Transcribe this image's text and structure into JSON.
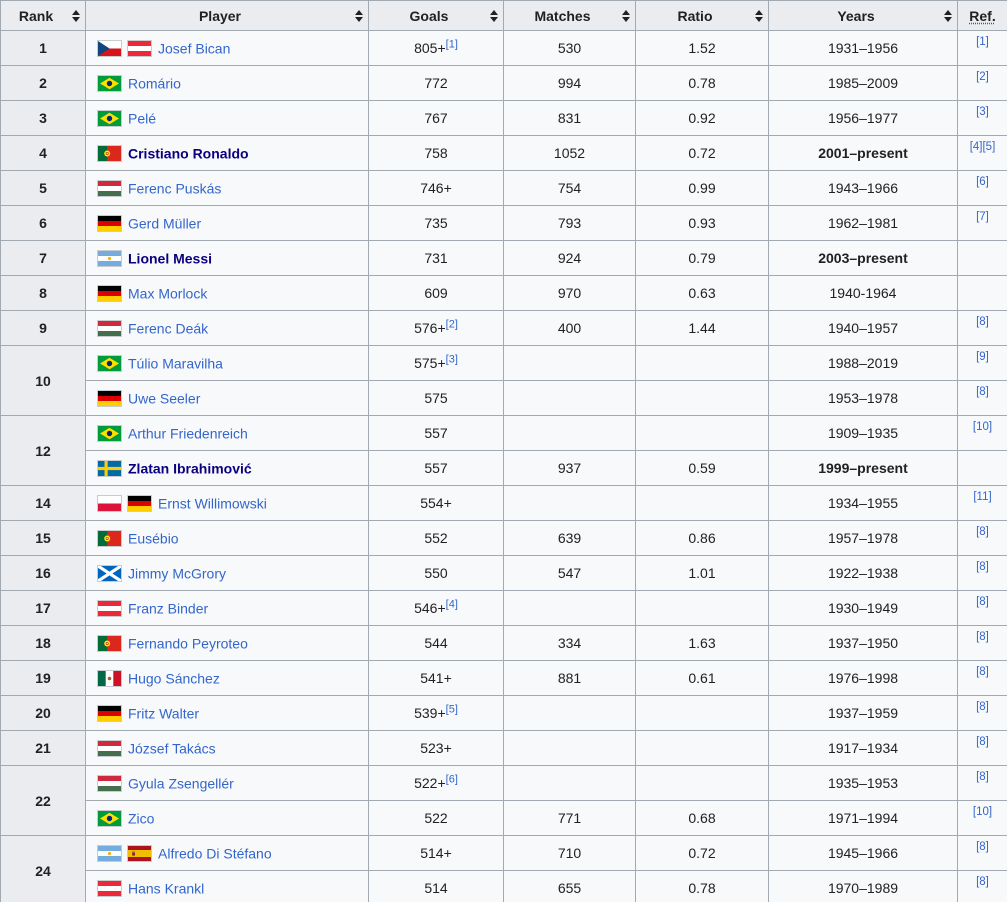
{
  "colors": {
    "header_bg": "#eaecf0",
    "cell_bg": "#f8f9fa",
    "border": "#a2a9b1",
    "link": "#3366cc",
    "active_player_link": "#0b0080",
    "text": "#202122"
  },
  "table": {
    "columns": [
      {
        "label": "Rank",
        "sortable": true,
        "dotted": false
      },
      {
        "label": "Player",
        "sortable": true,
        "dotted": false
      },
      {
        "label": "Goals",
        "sortable": true,
        "dotted": false
      },
      {
        "label": "Matches",
        "sortable": true,
        "dotted": false
      },
      {
        "label": "Ratio",
        "sortable": true,
        "dotted": false
      },
      {
        "label": "Years",
        "sortable": true,
        "dotted": false
      },
      {
        "label": "Ref.",
        "sortable": false,
        "dotted": true
      }
    ],
    "rows": [
      {
        "rank": "1",
        "rank_rowspan": 1,
        "flags": [
          {
            "name": "flag-czech-republic",
            "id": "cze"
          },
          {
            "name": "flag-austria",
            "id": "aut"
          }
        ],
        "player": "Josef Bican",
        "player_bold": false,
        "goals": "805+",
        "goals_ref": "[1]",
        "matches": "530",
        "ratio": "1.52",
        "years": "1931–1956",
        "years_bold": false,
        "ref": "[1]"
      },
      {
        "rank": "2",
        "rank_rowspan": 1,
        "flags": [
          {
            "name": "flag-brazil",
            "id": "bra"
          }
        ],
        "player": "Romário",
        "player_bold": false,
        "goals": "772",
        "goals_ref": "",
        "matches": "994",
        "ratio": "0.78",
        "years": "1985–2009",
        "years_bold": false,
        "ref": "[2]"
      },
      {
        "rank": "3",
        "rank_rowspan": 1,
        "flags": [
          {
            "name": "flag-brazil",
            "id": "bra"
          }
        ],
        "player": "Pelé",
        "player_bold": false,
        "goals": "767",
        "goals_ref": "",
        "matches": "831",
        "ratio": "0.92",
        "years": "1956–1977",
        "years_bold": false,
        "ref": "[3]"
      },
      {
        "rank": "4",
        "rank_rowspan": 1,
        "flags": [
          {
            "name": "flag-portugal",
            "id": "por"
          }
        ],
        "player": "Cristiano Ronaldo",
        "player_bold": true,
        "goals": "758",
        "goals_ref": "",
        "matches": "1052",
        "ratio": "0.72",
        "years": "2001–present",
        "years_bold": true,
        "ref": "[4][5]"
      },
      {
        "rank": "5",
        "rank_rowspan": 1,
        "flags": [
          {
            "name": "flag-hungary",
            "id": "hun"
          }
        ],
        "player": "Ferenc Puskás",
        "player_bold": false,
        "goals": "746+",
        "goals_ref": "",
        "matches": "754",
        "ratio": "0.99",
        "years": "1943–1966",
        "years_bold": false,
        "ref": "[6]"
      },
      {
        "rank": "6",
        "rank_rowspan": 1,
        "flags": [
          {
            "name": "flag-germany",
            "id": "ger"
          }
        ],
        "player": "Gerd Müller",
        "player_bold": false,
        "goals": "735",
        "goals_ref": "",
        "matches": "793",
        "ratio": "0.93",
        "years": "1962–1981",
        "years_bold": false,
        "ref": "[7]"
      },
      {
        "rank": "7",
        "rank_rowspan": 1,
        "flags": [
          {
            "name": "flag-argentina",
            "id": "arg"
          }
        ],
        "player": "Lionel Messi",
        "player_bold": true,
        "goals": "731",
        "goals_ref": "",
        "matches": "924",
        "ratio": "0.79",
        "years": "2003–present",
        "years_bold": true,
        "ref": ""
      },
      {
        "rank": "8",
        "rank_rowspan": 1,
        "flags": [
          {
            "name": "flag-germany",
            "id": "ger"
          }
        ],
        "player": "Max Morlock",
        "player_bold": false,
        "goals": "609",
        "goals_ref": "",
        "matches": "970",
        "ratio": "0.63",
        "years": "1940-1964",
        "years_bold": false,
        "ref": ""
      },
      {
        "rank": "9",
        "rank_rowspan": 1,
        "flags": [
          {
            "name": "flag-hungary",
            "id": "hun"
          }
        ],
        "player": "Ferenc Deák",
        "player_bold": false,
        "goals": "576+",
        "goals_ref": "[2]",
        "matches": "400",
        "ratio": "1.44",
        "years": "1940–1957",
        "years_bold": false,
        "ref": "[8]"
      },
      {
        "rank": "10",
        "rank_rowspan": 2,
        "flags": [
          {
            "name": "flag-brazil",
            "id": "bra"
          }
        ],
        "player": "Túlio Maravilha",
        "player_bold": false,
        "goals": "575+",
        "goals_ref": "[3]",
        "matches": "",
        "ratio": "",
        "years": "1988–2019",
        "years_bold": false,
        "ref": "[9]"
      },
      {
        "rank": null,
        "rank_rowspan": 1,
        "flags": [
          {
            "name": "flag-germany",
            "id": "ger"
          }
        ],
        "player": "Uwe Seeler",
        "player_bold": false,
        "goals": "575",
        "goals_ref": "",
        "matches": "",
        "ratio": "",
        "years": "1953–1978",
        "years_bold": false,
        "ref": "[8]"
      },
      {
        "rank": "12",
        "rank_rowspan": 2,
        "flags": [
          {
            "name": "flag-brazil",
            "id": "bra"
          }
        ],
        "player": "Arthur Friedenreich",
        "player_bold": false,
        "goals": "557",
        "goals_ref": "",
        "matches": "",
        "ratio": "",
        "years": "1909–1935",
        "years_bold": false,
        "ref": "[10]"
      },
      {
        "rank": null,
        "rank_rowspan": 1,
        "flags": [
          {
            "name": "flag-sweden",
            "id": "swe"
          }
        ],
        "player": "Zlatan Ibrahimović",
        "player_bold": true,
        "goals": "557",
        "goals_ref": "",
        "matches": "937",
        "ratio": "0.59",
        "years": "1999–present",
        "years_bold": true,
        "ref": ""
      },
      {
        "rank": "14",
        "rank_rowspan": 1,
        "flags": [
          {
            "name": "flag-poland",
            "id": "pol"
          },
          {
            "name": "flag-germany",
            "id": "ger"
          }
        ],
        "player": "Ernst Willimowski",
        "player_bold": false,
        "goals": "554+",
        "goals_ref": "",
        "matches": "",
        "ratio": "",
        "years": "1934–1955",
        "years_bold": false,
        "ref": "[11]"
      },
      {
        "rank": "15",
        "rank_rowspan": 1,
        "flags": [
          {
            "name": "flag-portugal",
            "id": "por"
          }
        ],
        "player": "Eusébio",
        "player_bold": false,
        "goals": "552",
        "goals_ref": "",
        "matches": "639",
        "ratio": "0.86",
        "years": "1957–1978",
        "years_bold": false,
        "ref": "[8]"
      },
      {
        "rank": "16",
        "rank_rowspan": 1,
        "flags": [
          {
            "name": "flag-scotland",
            "id": "sco"
          }
        ],
        "player": "Jimmy McGrory",
        "player_bold": false,
        "goals": "550",
        "goals_ref": "",
        "matches": "547",
        "ratio": "1.01",
        "years": "1922–1938",
        "years_bold": false,
        "ref": "[8]"
      },
      {
        "rank": "17",
        "rank_rowspan": 1,
        "flags": [
          {
            "name": "flag-austria",
            "id": "aut"
          }
        ],
        "player": "Franz Binder",
        "player_bold": false,
        "goals": "546+",
        "goals_ref": "[4]",
        "matches": "",
        "ratio": "",
        "years": "1930–1949",
        "years_bold": false,
        "ref": "[8]"
      },
      {
        "rank": "18",
        "rank_rowspan": 1,
        "flags": [
          {
            "name": "flag-portugal",
            "id": "por"
          }
        ],
        "player": "Fernando Peyroteo",
        "player_bold": false,
        "goals": "544",
        "goals_ref": "",
        "matches": "334",
        "ratio": "1.63",
        "years": "1937–1950",
        "years_bold": false,
        "ref": "[8]"
      },
      {
        "rank": "19",
        "rank_rowspan": 1,
        "flags": [
          {
            "name": "flag-mexico",
            "id": "mex"
          }
        ],
        "player": "Hugo Sánchez",
        "player_bold": false,
        "goals": "541+",
        "goals_ref": "",
        "matches": "881",
        "ratio": "0.61",
        "years": "1976–1998",
        "years_bold": false,
        "ref": "[8]"
      },
      {
        "rank": "20",
        "rank_rowspan": 1,
        "flags": [
          {
            "name": "flag-germany",
            "id": "ger"
          }
        ],
        "player": "Fritz Walter",
        "player_bold": false,
        "goals": "539+",
        "goals_ref": "[5]",
        "matches": "",
        "ratio": "",
        "years": "1937–1959",
        "years_bold": false,
        "ref": "[8]"
      },
      {
        "rank": "21",
        "rank_rowspan": 1,
        "flags": [
          {
            "name": "flag-hungary",
            "id": "hun"
          }
        ],
        "player": "József Takács",
        "player_bold": false,
        "goals": "523+",
        "goals_ref": "",
        "matches": "",
        "ratio": "",
        "years": "1917–1934",
        "years_bold": false,
        "ref": "[8]"
      },
      {
        "rank": "22",
        "rank_rowspan": 2,
        "flags": [
          {
            "name": "flag-hungary",
            "id": "hun"
          }
        ],
        "player": "Gyula Zsengellér",
        "player_bold": false,
        "goals": "522+",
        "goals_ref": "[6]",
        "matches": "",
        "ratio": "",
        "years": "1935–1953",
        "years_bold": false,
        "ref": "[8]"
      },
      {
        "rank": null,
        "rank_rowspan": 1,
        "flags": [
          {
            "name": "flag-brazil",
            "id": "bra"
          }
        ],
        "player": "Zico",
        "player_bold": false,
        "goals": "522",
        "goals_ref": "",
        "matches": "771",
        "ratio": "0.68",
        "years": "1971–1994",
        "years_bold": false,
        "ref": "[10]"
      },
      {
        "rank": "24",
        "rank_rowspan": 2,
        "flags": [
          {
            "name": "flag-argentina",
            "id": "arg"
          },
          {
            "name": "flag-spain",
            "id": "esp"
          }
        ],
        "player": "Alfredo Di Stéfano",
        "player_bold": false,
        "goals": "514+",
        "goals_ref": "",
        "matches": "710",
        "ratio": "0.72",
        "years": "1945–1966",
        "years_bold": false,
        "ref": "[8]"
      },
      {
        "rank": null,
        "rank_rowspan": 1,
        "flags": [
          {
            "name": "flag-austria",
            "id": "aut"
          }
        ],
        "player": "Hans Krankl",
        "player_bold": false,
        "goals": "514",
        "goals_ref": "",
        "matches": "655",
        "ratio": "0.78",
        "years": "1970–1989",
        "years_bold": false,
        "ref": "[8]"
      }
    ]
  }
}
